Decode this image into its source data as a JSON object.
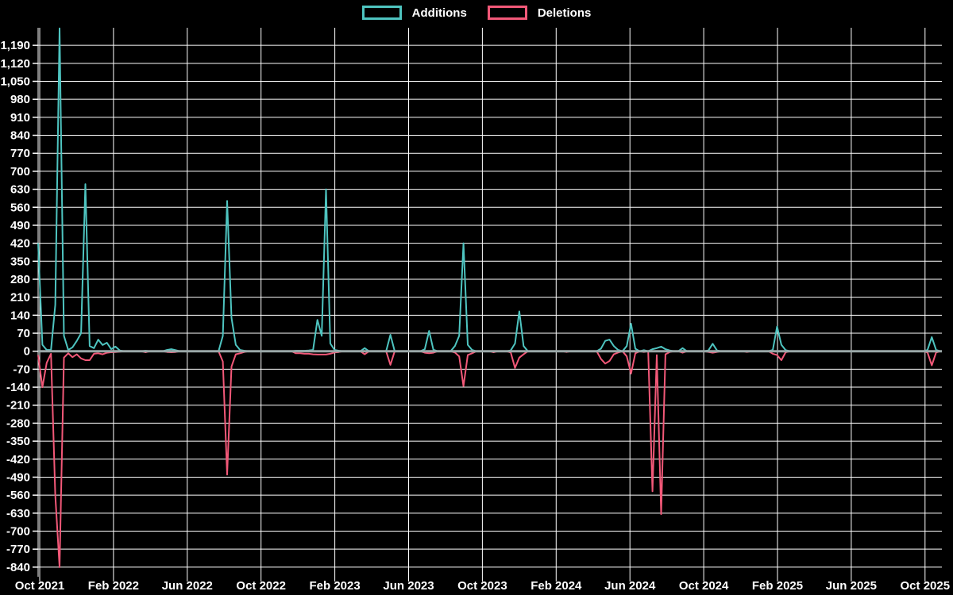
{
  "page": {
    "background": "#000000"
  },
  "chart_data": {
    "type": "line",
    "title": "",
    "legend_position": "top-center",
    "grid": true,
    "grid_color": "#ffffff",
    "axis_text_color": "#ffffff",
    "zero_line_color": "#9aa8a8",
    "x_tick_labels": [
      "Oct 2021",
      "Feb 2022",
      "Jun 2022",
      "Oct 2022",
      "Feb 2023",
      "Jun 2023",
      "Oct 2023",
      "Feb 2024",
      "Jun 2024",
      "Oct 2024",
      "Feb 2025",
      "Jun 2025",
      "Oct 2025"
    ],
    "y_ticks": [
      1190,
      1120,
      1050,
      980,
      910,
      840,
      770,
      700,
      630,
      560,
      490,
      420,
      350,
      280,
      210,
      140,
      70,
      0,
      -70,
      -140,
      -210,
      -280,
      -350,
      -420,
      -490,
      -560,
      -630,
      -700,
      -770,
      -840
    ],
    "ylim": [
      -877,
      1258
    ],
    "x_unit": "week",
    "total_weeks": 212,
    "point_format": [
      "week_index",
      "additions",
      "deletions"
    ],
    "series": [
      {
        "name": "Additions",
        "color": "#4ec4c0"
      },
      {
        "name": "Deletions",
        "color": "#f25878"
      }
    ],
    "weekly_points": [
      [
        0,
        420,
        -15
      ],
      [
        1,
        25,
        -140
      ],
      [
        2,
        5,
        -45
      ],
      [
        3,
        5,
        -10
      ],
      [
        4,
        180,
        -560
      ],
      [
        5,
        1256,
        -840
      ],
      [
        6,
        60,
        -25
      ],
      [
        7,
        5,
        -8
      ],
      [
        8,
        15,
        -23
      ],
      [
        9,
        40,
        -12
      ],
      [
        10,
        70,
        -28
      ],
      [
        11,
        650,
        -35
      ],
      [
        12,
        20,
        -35
      ],
      [
        13,
        12,
        -10
      ],
      [
        14,
        45,
        -8
      ],
      [
        15,
        24,
        -12
      ],
      [
        16,
        33,
        -6
      ],
      [
        17,
        8,
        -4
      ],
      [
        18,
        18,
        -3
      ],
      [
        19,
        3,
        -2
      ],
      [
        25,
        2,
        -4
      ],
      [
        30,
        5,
        -3
      ],
      [
        31,
        8,
        -4
      ],
      [
        32,
        4,
        -3
      ],
      [
        43,
        60,
        -40
      ],
      [
        44,
        585,
        -480
      ],
      [
        45,
        130,
        -60
      ],
      [
        46,
        25,
        -12
      ],
      [
        47,
        5,
        -8
      ],
      [
        48,
        2,
        -3
      ],
      [
        60,
        2,
        -8
      ],
      [
        61,
        2,
        -8
      ],
      [
        62,
        2,
        -10
      ],
      [
        63,
        3,
        -10
      ],
      [
        64,
        5,
        -12
      ],
      [
        65,
        122,
        -13
      ],
      [
        66,
        60,
        -13
      ],
      [
        67,
        630,
        -13
      ],
      [
        68,
        30,
        -10
      ],
      [
        69,
        5,
        -5
      ],
      [
        70,
        2,
        -3
      ],
      [
        76,
        12,
        -12
      ],
      [
        82,
        64,
        -53
      ],
      [
        90,
        8,
        -6
      ],
      [
        91,
        79,
        -8
      ],
      [
        92,
        6,
        -6
      ],
      [
        97,
        20,
        -5
      ],
      [
        98,
        60,
        -20
      ],
      [
        99,
        420,
        -136
      ],
      [
        100,
        25,
        -15
      ],
      [
        101,
        5,
        -8
      ],
      [
        106,
        0,
        -4
      ],
      [
        110,
        3,
        -5
      ],
      [
        111,
        30,
        -65
      ],
      [
        112,
        155,
        -25
      ],
      [
        113,
        20,
        -12
      ],
      [
        123,
        0,
        -3
      ],
      [
        131,
        10,
        -30
      ],
      [
        132,
        40,
        -48
      ],
      [
        133,
        45,
        -38
      ],
      [
        134,
        20,
        -12
      ],
      [
        135,
        5,
        -5
      ],
      [
        137,
        20,
        -20
      ],
      [
        138,
        107,
        -87
      ],
      [
        139,
        10,
        -8
      ],
      [
        141,
        4,
        -3
      ],
      [
        143,
        8,
        -545
      ],
      [
        144,
        12,
        -15
      ],
      [
        145,
        18,
        -634
      ],
      [
        146,
        8,
        -12
      ],
      [
        147,
        3,
        -3
      ],
      [
        150,
        12,
        -6
      ],
      [
        156,
        3,
        -3
      ],
      [
        157,
        29,
        -6
      ],
      [
        158,
        3,
        -3
      ],
      [
        165,
        0,
        -3
      ],
      [
        171,
        5,
        -10
      ],
      [
        172,
        96,
        -15
      ],
      [
        173,
        25,
        -35
      ],
      [
        174,
        4,
        -4
      ],
      [
        207,
        5,
        -5
      ],
      [
        208,
        55,
        -55
      ],
      [
        209,
        5,
        -5
      ]
    ]
  }
}
